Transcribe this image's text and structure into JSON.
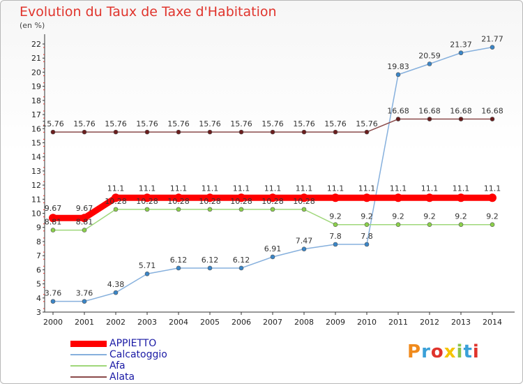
{
  "title": "Evolution du Taux de Taxe d'Habitation",
  "unit": "(en %)",
  "logo": {
    "text": "Proxiti",
    "colors": [
      "#f08a1c",
      "#3aa0d8",
      "#e0342c",
      "#f5c400",
      "#8bc34a",
      "#3aa0d8",
      "#e0342c"
    ]
  },
  "chart_data": {
    "type": "line",
    "x": [
      "2000",
      "2001",
      "2002",
      "2003",
      "2004",
      "2005",
      "2006",
      "2007",
      "2008",
      "2009",
      "2010",
      "2011",
      "2012",
      "2013",
      "2014"
    ],
    "ylim": [
      3,
      22
    ],
    "yticks": [
      3,
      4,
      5,
      6,
      7,
      8,
      9,
      10,
      11,
      12,
      13,
      14,
      15,
      16,
      17,
      18,
      19,
      20,
      21,
      22
    ],
    "grid": false,
    "legend_position": "bottom-left",
    "series": [
      {
        "name": "APPIETTO",
        "color": "#ff0000",
        "point_color": "#ff0000",
        "values": [
          9.67,
          9.67,
          11.1,
          11.1,
          11.1,
          11.1,
          11.1,
          11.1,
          11.1,
          11.1,
          11.1,
          11.1,
          11.1,
          11.1,
          11.1
        ],
        "labels": [
          "9.67",
          "9.67",
          "11.1",
          "11.1",
          "11.1",
          "11.1",
          "11.1",
          "11.1",
          "11.1",
          "11.1",
          "11.1",
          "11.1",
          "11.1",
          "11.1",
          "11.1"
        ]
      },
      {
        "name": "Calcatoggio",
        "color": "#86b0dd",
        "point_color": "#3a86c8",
        "values": [
          3.76,
          3.76,
          4.38,
          5.71,
          6.12,
          6.12,
          6.12,
          6.91,
          7.47,
          7.8,
          7.8,
          19.83,
          20.59,
          21.37,
          21.77
        ],
        "labels": [
          "3.76",
          "3.76",
          "4.38",
          "5.71",
          "6.12",
          "6.12",
          "6.12",
          "6.91",
          "7.47",
          "7.8",
          "7.8",
          "19.83",
          "20.59",
          "21.37",
          "21.77"
        ]
      },
      {
        "name": "Afa",
        "color": "#9fd77a",
        "point_color": "#8bd04a",
        "values": [
          8.81,
          8.81,
          10.28,
          10.28,
          10.28,
          10.28,
          10.28,
          10.28,
          10.28,
          9.2,
          9.2,
          9.2,
          9.2,
          9.2,
          9.2
        ],
        "labels": [
          "8.81",
          "8.81",
          "10.28",
          "10.28",
          "10.28",
          "10.28",
          "10.28",
          "10.28",
          "10.28",
          "9.2",
          "9.2",
          "9.2",
          "9.2",
          "9.2",
          "9.2"
        ]
      },
      {
        "name": "Alata",
        "color": "#8a4a4a",
        "point_color": "#6a1c1c",
        "values": [
          15.76,
          15.76,
          15.76,
          15.76,
          15.76,
          15.76,
          15.76,
          15.76,
          15.76,
          15.76,
          15.76,
          16.68,
          16.68,
          16.68,
          16.68
        ],
        "labels": [
          "15.76",
          "15.76",
          "15.76",
          "15.76",
          "15.76",
          "15.76",
          "15.76",
          "15.76",
          "15.76",
          "15.76",
          "15.76",
          "16.68",
          "16.68",
          "16.68",
          "16.68"
        ]
      }
    ]
  }
}
